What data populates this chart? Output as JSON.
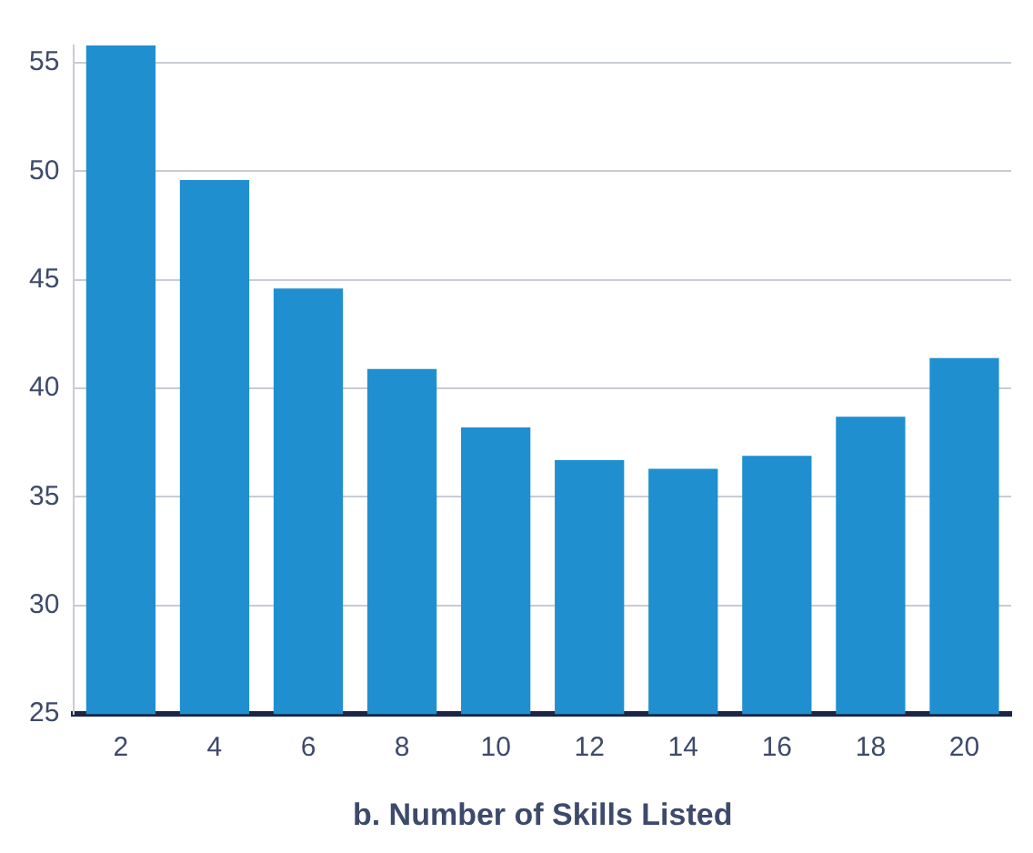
{
  "chart_data": {
    "type": "bar",
    "xlabel": "b. Number of Skills Listed",
    "categories": [
      "2",
      "4",
      "6",
      "8",
      "10",
      "12",
      "14",
      "16",
      "18",
      "20"
    ],
    "values": [
      55.8,
      49.6,
      44.6,
      40.9,
      38.2,
      36.7,
      36.3,
      36.9,
      38.7,
      41.4
    ],
    "color": "#1f8fd0",
    "ylim": [
      25,
      55.8
    ],
    "yticks": [
      25,
      30,
      35,
      40,
      45,
      50,
      55
    ],
    "grid": "y"
  }
}
